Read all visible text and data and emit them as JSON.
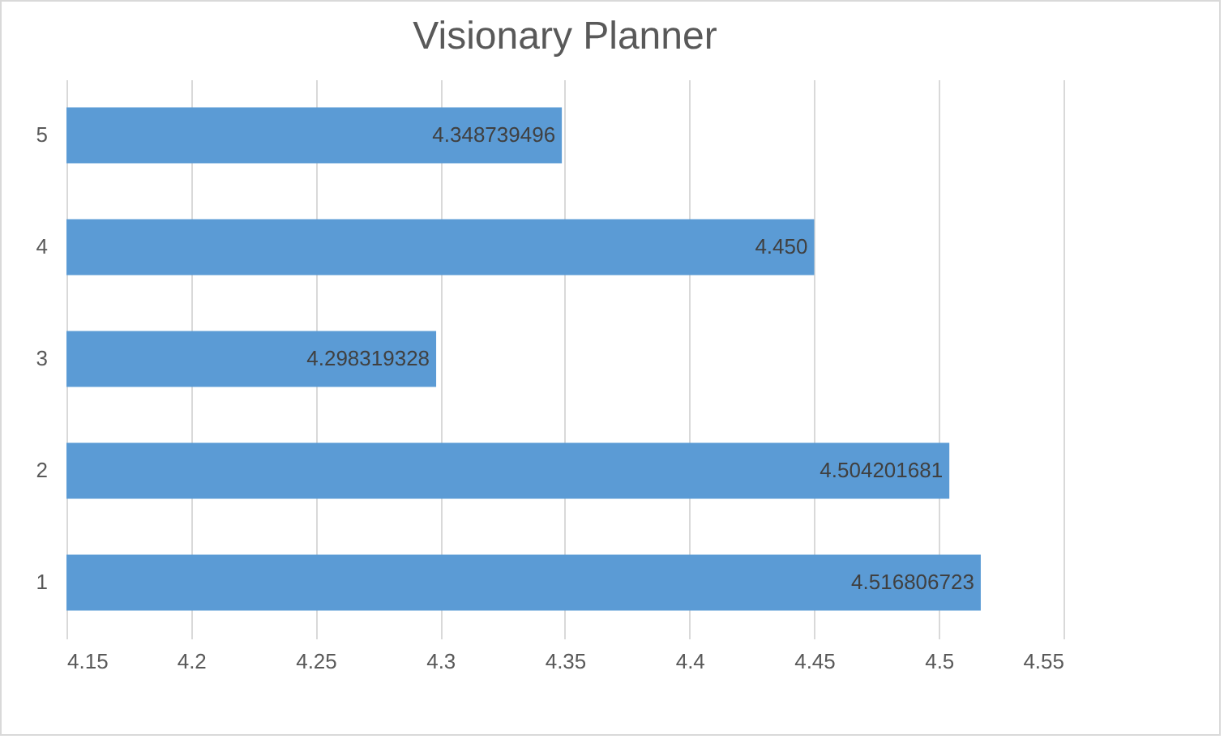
{
  "chart_data": {
    "type": "bar",
    "orientation": "horizontal",
    "title": "Visionary Planner",
    "categories": [
      "5",
      "4",
      "3",
      "2",
      "1"
    ],
    "values": [
      4.348739496,
      4.45,
      4.298319328,
      4.504201681,
      4.516806723
    ],
    "value_labels": [
      "4.348739496",
      "4.450",
      "4.298319328",
      "4.504201681",
      "4.516806723"
    ],
    "color": "#5b9bd5",
    "xlim": [
      4.15,
      4.55
    ],
    "xticks": [
      4.15,
      4.2,
      4.25,
      4.3,
      4.35,
      4.4,
      4.45,
      4.5,
      4.55
    ],
    "grid": "x"
  }
}
